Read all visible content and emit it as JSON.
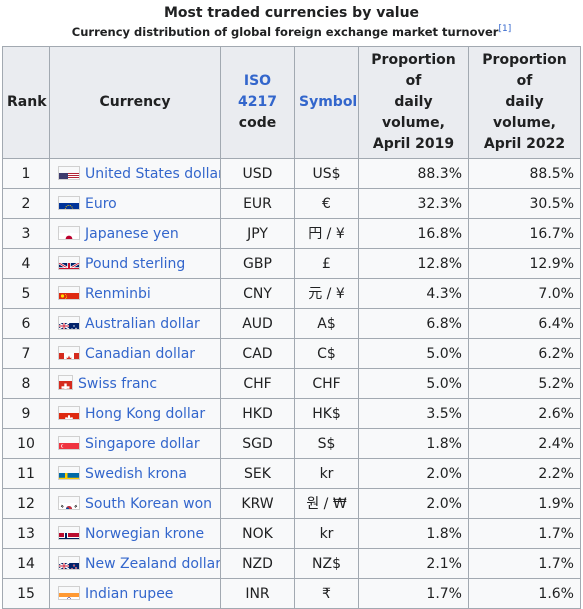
{
  "caption": {
    "title": "Most traded currencies by value",
    "subtitle": "Currency distribution of global foreign exchange market turnover",
    "ref": "[1]"
  },
  "headers": {
    "rank": "Rank",
    "currency": "Currency",
    "iso_line1": "ISO 4217",
    "iso_line2": "code",
    "symbol": "Symbol",
    "p2019_line1": "Proportion of",
    "p2019_line2": "daily volume,",
    "p2019_line3": "April 2019",
    "p2022_line1": "Proportion of",
    "p2022_line2": "daily volume,",
    "p2022_line3": "April 2022"
  },
  "rows": [
    {
      "rank": "1",
      "currency": "United States dollar",
      "code": "USD",
      "symbol": "US$",
      "p2019": "88.3%",
      "p2022": "88.5%",
      "flag": "us-flag-icon"
    },
    {
      "rank": "2",
      "currency": "Euro",
      "code": "EUR",
      "symbol": "€",
      "p2019": "32.3%",
      "p2022": "30.5%",
      "flag": "eu-flag-icon"
    },
    {
      "rank": "3",
      "currency": "Japanese yen",
      "code": "JPY",
      "symbol": "円 / ¥",
      "p2019": "16.8%",
      "p2022": "16.7%",
      "flag": "japan-flag-icon"
    },
    {
      "rank": "4",
      "currency": "Pound sterling",
      "code": "GBP",
      "symbol": "£",
      "p2019": "12.8%",
      "p2022": "12.9%",
      "flag": "uk-flag-icon"
    },
    {
      "rank": "5",
      "currency": "Renminbi",
      "code": "CNY",
      "symbol": "元 / ¥",
      "p2019": "4.3%",
      "p2022": "7.0%",
      "flag": "china-flag-icon"
    },
    {
      "rank": "6",
      "currency": "Australian dollar",
      "code": "AUD",
      "symbol": "A$",
      "p2019": "6.8%",
      "p2022": "6.4%",
      "flag": "australia-flag-icon"
    },
    {
      "rank": "7",
      "currency": "Canadian dollar",
      "code": "CAD",
      "symbol": "C$",
      "p2019": "5.0%",
      "p2022": "6.2%",
      "flag": "canada-flag-icon"
    },
    {
      "rank": "8",
      "currency": "Swiss franc",
      "code": "CHF",
      "symbol": "CHF",
      "p2019": "5.0%",
      "p2022": "5.2%",
      "flag": "switzerland-flag-icon"
    },
    {
      "rank": "9",
      "currency": "Hong Kong dollar",
      "code": "HKD",
      "symbol": "HK$",
      "p2019": "3.5%",
      "p2022": "2.6%",
      "flag": "hong-kong-flag-icon"
    },
    {
      "rank": "10",
      "currency": "Singapore dollar",
      "code": "SGD",
      "symbol": "S$",
      "p2019": "1.8%",
      "p2022": "2.4%",
      "flag": "singapore-flag-icon"
    },
    {
      "rank": "11",
      "currency": "Swedish krona",
      "code": "SEK",
      "symbol": "kr",
      "p2019": "2.0%",
      "p2022": "2.2%",
      "flag": "sweden-flag-icon"
    },
    {
      "rank": "12",
      "currency": "South Korean won",
      "code": "KRW",
      "symbol": "원 / ₩",
      "p2019": "2.0%",
      "p2022": "1.9%",
      "flag": "south-korea-flag-icon"
    },
    {
      "rank": "13",
      "currency": "Norwegian krone",
      "code": "NOK",
      "symbol": "kr",
      "p2019": "1.8%",
      "p2022": "1.7%",
      "flag": "norway-flag-icon"
    },
    {
      "rank": "14",
      "currency": "New Zealand dollar",
      "code": "NZD",
      "symbol": "NZ$",
      "p2019": "2.1%",
      "p2022": "1.7%",
      "flag": "new-zealand-flag-icon"
    },
    {
      "rank": "15",
      "currency": "Indian rupee",
      "code": "INR",
      "symbol": "₹",
      "p2019": "1.7%",
      "p2022": "1.6%",
      "flag": "india-flag-icon"
    }
  ],
  "colors": {
    "link": "#3366cc",
    "header_bg": "#eaecf0",
    "cell_bg": "#f8f9fa",
    "border": "#a2a9b1"
  }
}
